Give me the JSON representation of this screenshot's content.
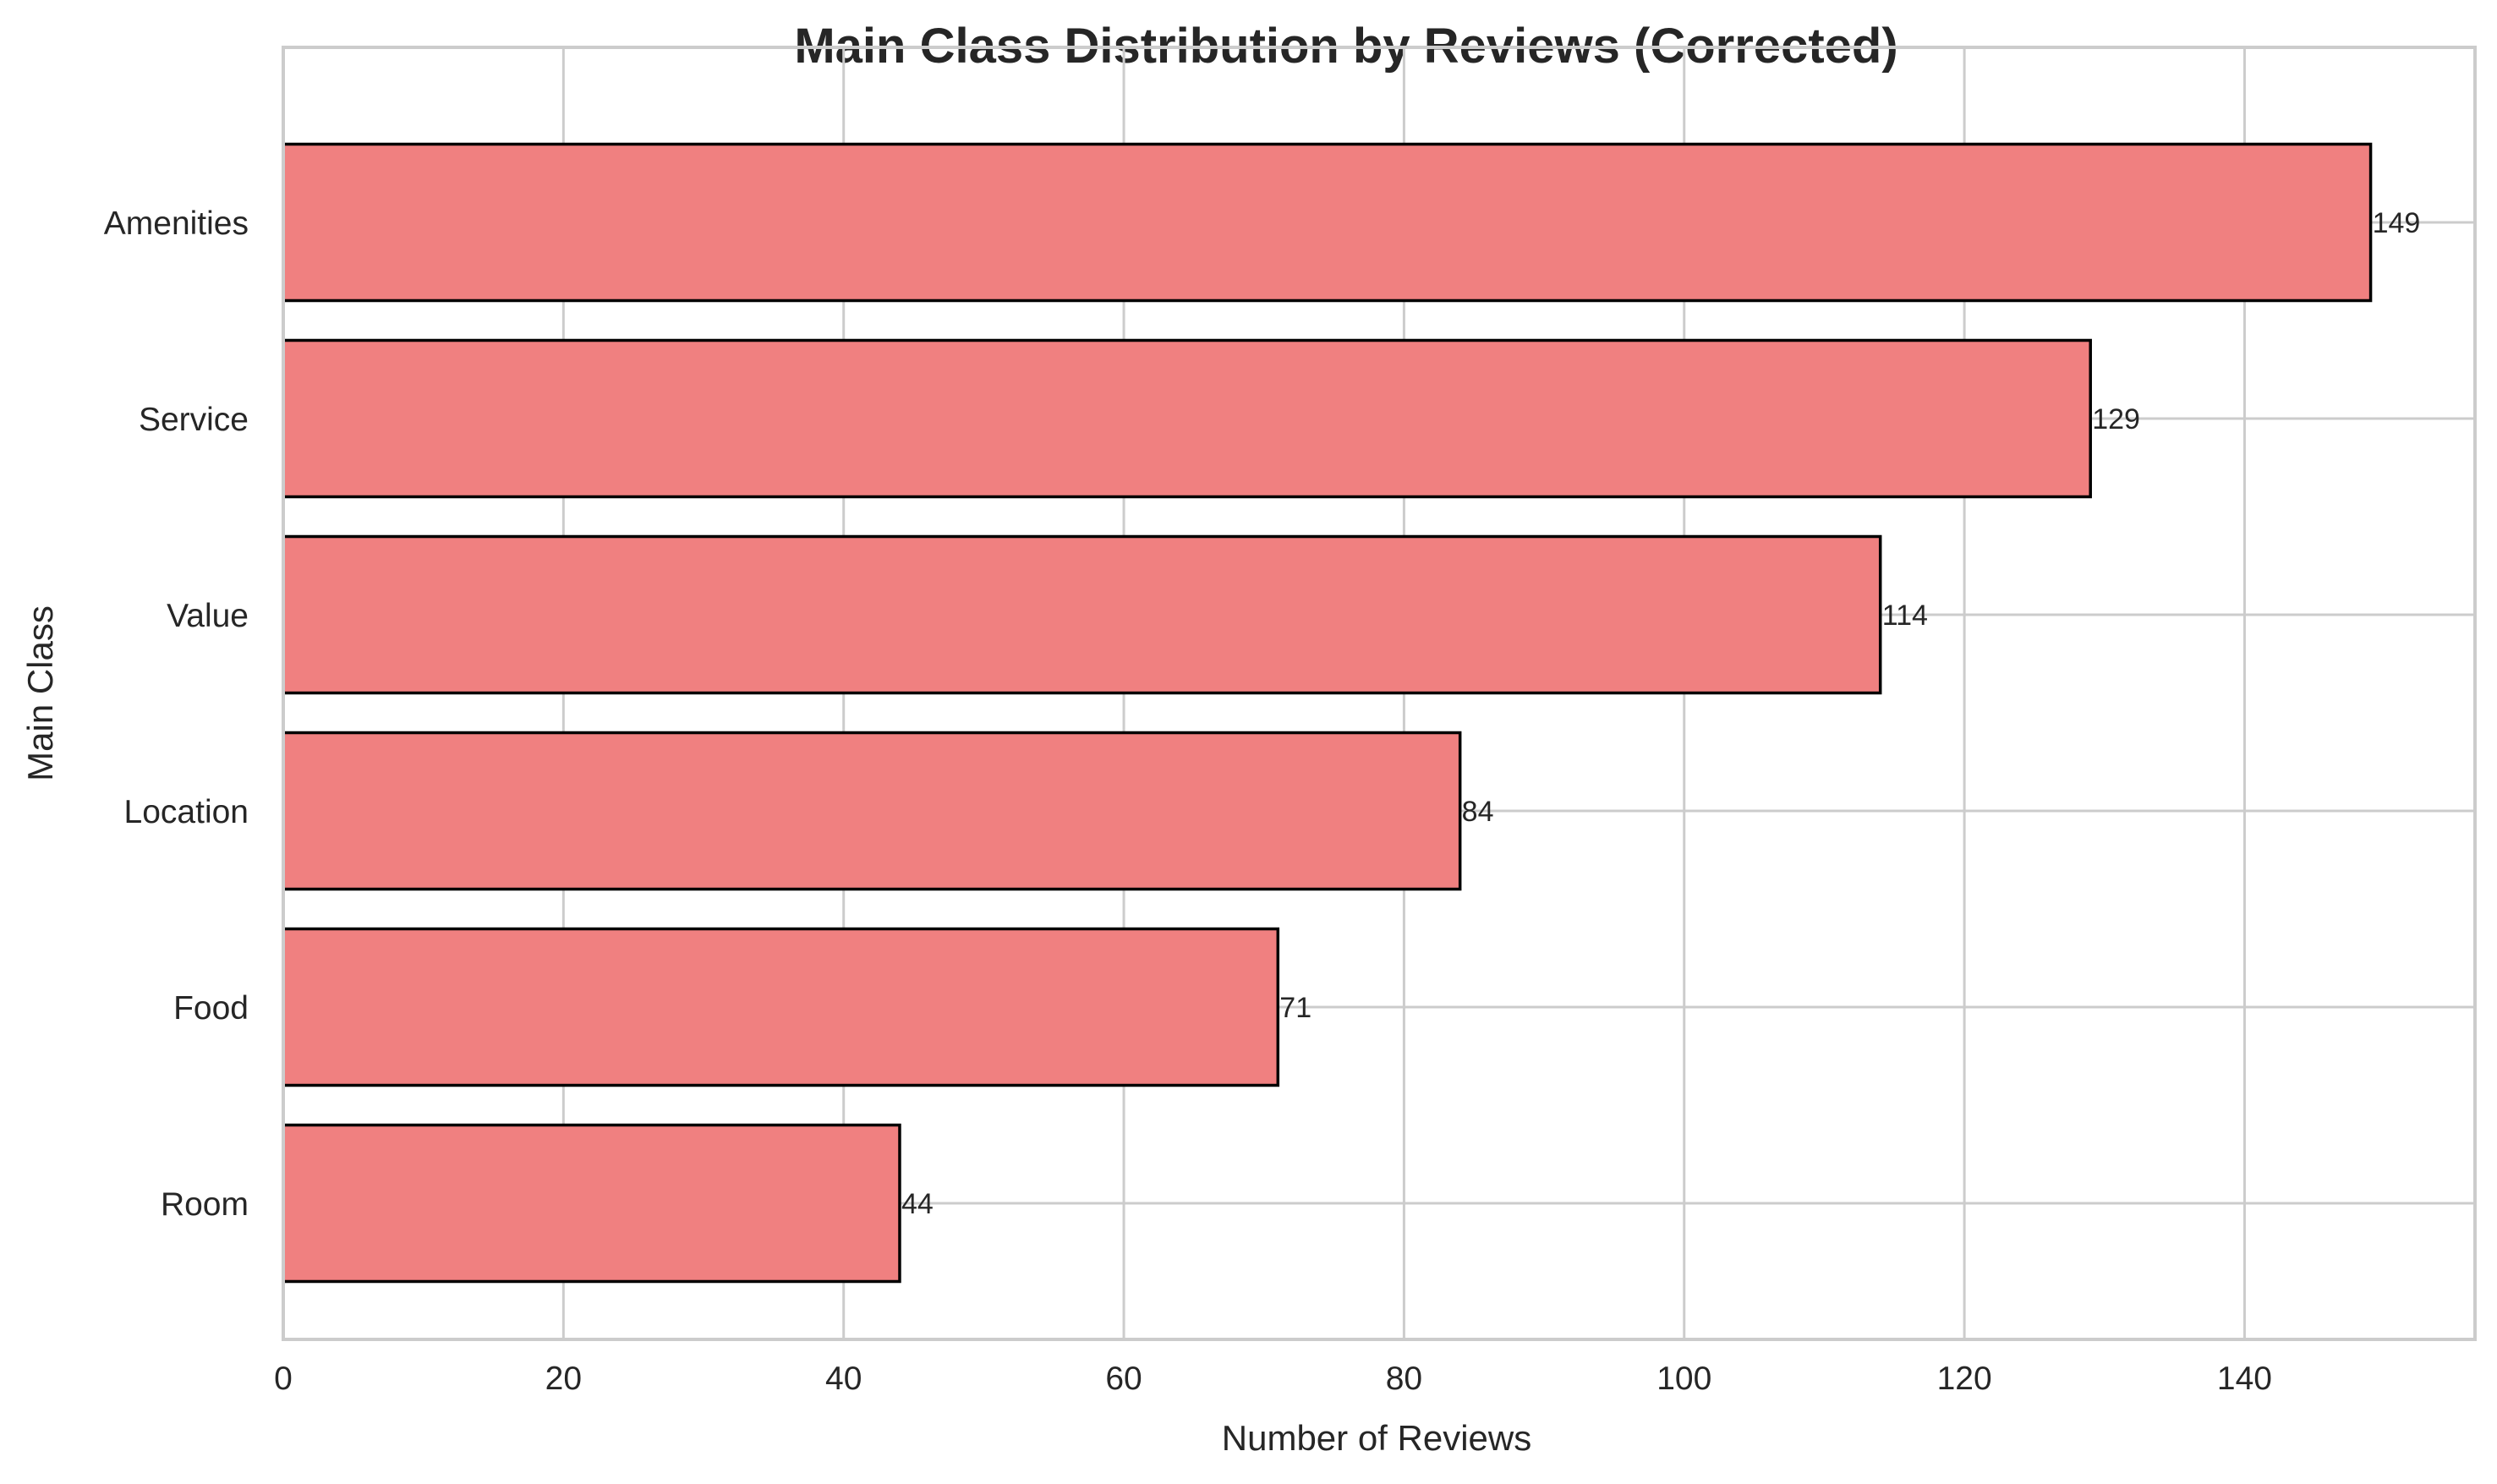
{
  "chart_data": {
    "type": "bar",
    "orientation": "horizontal",
    "title": "Main Class Distribution by Reviews (Corrected)",
    "xlabel": "Number of Reviews",
    "ylabel": "Main Class",
    "categories": [
      "Amenities",
      "Service",
      "Value",
      "Location",
      "Food",
      "Room"
    ],
    "values": [
      149,
      129,
      114,
      84,
      71,
      44
    ],
    "data_labels": [
      "149",
      "129",
      "114",
      "84",
      "71",
      "44"
    ],
    "xlim": [
      0,
      156.45
    ],
    "xticks": [
      0,
      20,
      40,
      60,
      80,
      100,
      120,
      140
    ],
    "xtick_labels": [
      "0",
      "20",
      "40",
      "60",
      "80",
      "100",
      "120",
      "140"
    ],
    "grid": true,
    "bar_color": "#f08080",
    "edge_color": "#000000",
    "grid_color": "#cccccc"
  }
}
